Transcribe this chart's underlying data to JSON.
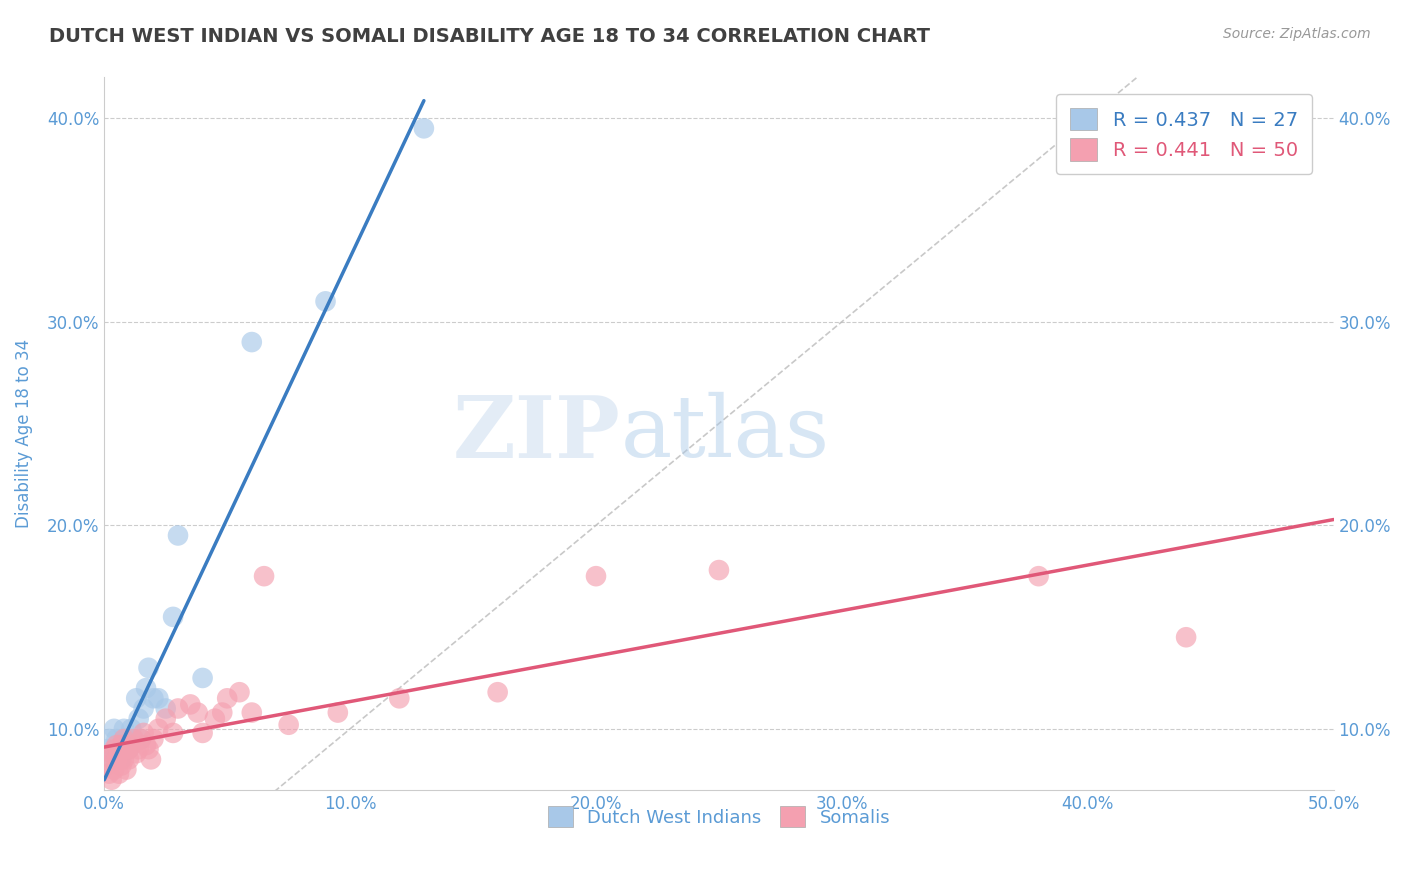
{
  "title": "DUTCH WEST INDIAN VS SOMALI DISABILITY AGE 18 TO 34 CORRELATION CHART",
  "source_text": "Source: ZipAtlas.com",
  "ylabel": "Disability Age 18 to 34",
  "xlim": [
    0.0,
    0.5
  ],
  "ylim": [
    0.07,
    0.42
  ],
  "xticks": [
    0.0,
    0.1,
    0.2,
    0.3,
    0.4,
    0.5
  ],
  "xtick_labels": [
    "0.0%",
    "10.0%",
    "20.0%",
    "30.0%",
    "40.0%",
    "50.0%"
  ],
  "yticks": [
    0.1,
    0.2,
    0.3,
    0.4
  ],
  "ytick_labels": [
    "10.0%",
    "20.0%",
    "30.0%",
    "40.0%"
  ],
  "legend_r1": "R = 0.437   N = 27",
  "legend_r2": "R = 0.441   N = 50",
  "legend_label1": "Dutch West Indians",
  "legend_label2": "Somalis",
  "blue_color": "#a8c8e8",
  "blue_line_color": "#3a7cc1",
  "pink_color": "#f4a0b0",
  "pink_line_color": "#e05878",
  "watermark_zip": "ZIP",
  "watermark_atlas": "atlas",
  "title_color": "#404040",
  "tick_label_color": "#5b9bd5",
  "dutch_west_x": [
    0.001,
    0.002,
    0.003,
    0.004,
    0.005,
    0.006,
    0.007,
    0.008,
    0.009,
    0.01,
    0.011,
    0.012,
    0.013,
    0.014,
    0.015,
    0.016,
    0.017,
    0.018,
    0.02,
    0.022,
    0.025,
    0.028,
    0.03,
    0.04,
    0.06,
    0.09,
    0.13
  ],
  "dutch_west_y": [
    0.09,
    0.095,
    0.085,
    0.1,
    0.095,
    0.09,
    0.085,
    0.1,
    0.095,
    0.09,
    0.1,
    0.095,
    0.115,
    0.105,
    0.095,
    0.11,
    0.12,
    0.13,
    0.115,
    0.115,
    0.11,
    0.155,
    0.195,
    0.125,
    0.29,
    0.31,
    0.395
  ],
  "somali_x": [
    0.001,
    0.002,
    0.002,
    0.003,
    0.003,
    0.004,
    0.004,
    0.005,
    0.005,
    0.006,
    0.006,
    0.007,
    0.007,
    0.008,
    0.008,
    0.009,
    0.009,
    0.01,
    0.01,
    0.011,
    0.012,
    0.013,
    0.014,
    0.015,
    0.016,
    0.017,
    0.018,
    0.019,
    0.02,
    0.022,
    0.025,
    0.028,
    0.03,
    0.035,
    0.038,
    0.04,
    0.045,
    0.048,
    0.05,
    0.055,
    0.06,
    0.065,
    0.075,
    0.095,
    0.12,
    0.16,
    0.2,
    0.25,
    0.38,
    0.44
  ],
  "somali_y": [
    0.082,
    0.078,
    0.086,
    0.075,
    0.088,
    0.08,
    0.09,
    0.085,
    0.092,
    0.078,
    0.088,
    0.082,
    0.092,
    0.085,
    0.095,
    0.08,
    0.09,
    0.085,
    0.09,
    0.092,
    0.095,
    0.088,
    0.09,
    0.095,
    0.098,
    0.092,
    0.09,
    0.085,
    0.095,
    0.1,
    0.105,
    0.098,
    0.11,
    0.112,
    0.108,
    0.098,
    0.105,
    0.108,
    0.115,
    0.118,
    0.108,
    0.175,
    0.102,
    0.108,
    0.115,
    0.118,
    0.175,
    0.178,
    0.175,
    0.145
  ],
  "dwi_line_x0": 0.0,
  "dwi_line_x1": 0.13,
  "som_line_x0": 0.0,
  "som_line_x1": 0.5
}
